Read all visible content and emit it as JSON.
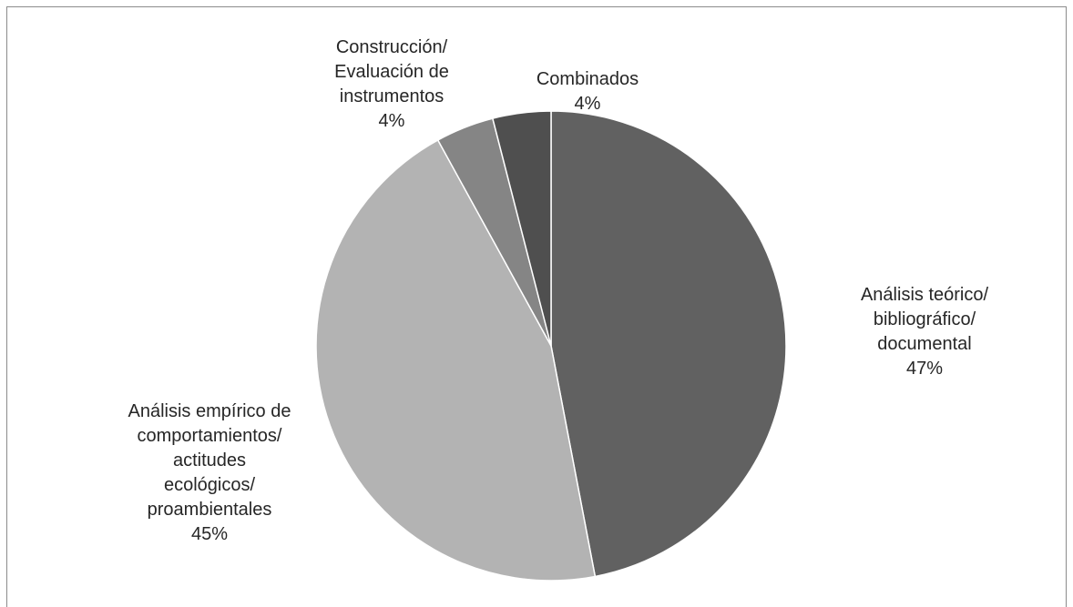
{
  "chart_data": {
    "type": "pie",
    "title": "",
    "slices": [
      {
        "label": "Análisis teórico/\nbibliográfico/\ndocumental",
        "value": 47,
        "value_label": "47%",
        "color": "#616161"
      },
      {
        "label": "Análisis empírico de\ncomportamientos/\nactitudes\necológicos/\nproambientales",
        "value": 45,
        "value_label": "45%",
        "color": "#b3b3b3"
      },
      {
        "label": "Construcción/\nEvaluación de\ninstrumentos",
        "value": 4,
        "value_label": "4%",
        "color": "#858585"
      },
      {
        "label": "Combinados",
        "value": 4,
        "value_label": "4%",
        "color": "#4f4f4f"
      }
    ],
    "start_angle": "12 o'clock",
    "direction": "clockwise",
    "legend": "none",
    "slice_border_color": "#ffffff"
  }
}
